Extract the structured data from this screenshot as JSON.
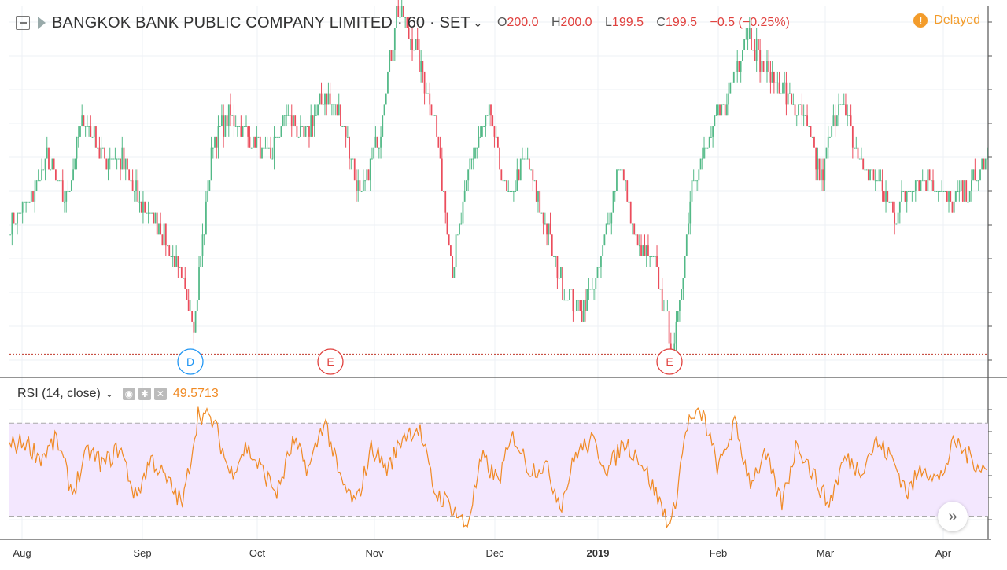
{
  "header": {
    "title": "BANGKOK BANK PUBLIC COMPANY LIMITED",
    "interval": "60",
    "exchange": "SET",
    "ohlc": {
      "o_label": "O",
      "o": "200.0",
      "h_label": "H",
      "h": "200.0",
      "l_label": "L",
      "l": "199.5",
      "c_label": "C",
      "c": "199.5",
      "change": "−0.5 (−0.25%)"
    },
    "status": "Delayed",
    "status_icon": "exclamation-icon"
  },
  "rsi": {
    "label": "RSI (14, close)",
    "value": "49.5713"
  },
  "colors": {
    "up": "#53b987",
    "down": "#eb4d5c",
    "rsi_line": "#f08a24",
    "rsi_band": "#f3e7fe",
    "grid": "#eef1f5",
    "min_line": "#c0392b"
  },
  "chart_data": [
    {
      "type": "candlestick",
      "x_ticks": [
        "Aug",
        "Sep",
        "Oct",
        "Nov",
        "Dec",
        "2019",
        "Feb",
        "Mar",
        "Apr"
      ],
      "y_range": [
        193,
        210
      ],
      "markers": [
        {
          "letter": "D",
          "color": "#2196f3"
        },
        {
          "letter": "E",
          "color": "#e0413e"
        },
        {
          "letter": "E",
          "color": "#e0413e"
        }
      ],
      "pivots": [
        200,
        201,
        203,
        201,
        205,
        203,
        203,
        201,
        200,
        198,
        195.5,
        204,
        205,
        204,
        203,
        205,
        204,
        206,
        205,
        201,
        204,
        210,
        208,
        205,
        198,
        203,
        205,
        201,
        203,
        200,
        197,
        196,
        198,
        203,
        199,
        198,
        194,
        202,
        204,
        206,
        209,
        207,
        206,
        205,
        202,
        206,
        203,
        202,
        200.5,
        202,
        202,
        201,
        201.5,
        203
      ]
    },
    {
      "type": "line",
      "title": "RSI (14, close)",
      "y_range": [
        20,
        85
      ],
      "band": [
        30,
        70
      ],
      "last": 49.5713,
      "pivots": [
        60,
        62,
        55,
        63,
        40,
        58,
        52,
        60,
        38,
        55,
        45,
        35,
        75,
        70,
        48,
        60,
        50,
        40,
        62,
        50,
        72,
        45,
        35,
        60,
        50,
        65,
        68,
        40,
        35,
        25,
        55,
        45,
        65,
        50,
        52,
        35,
        58,
        62,
        50,
        62,
        55,
        40,
        25,
        70,
        74,
        50,
        70,
        45,
        56,
        35,
        62,
        48,
        35,
        55,
        50,
        62,
        55,
        40,
        52,
        45,
        62,
        55,
        49.6
      ]
    }
  ]
}
